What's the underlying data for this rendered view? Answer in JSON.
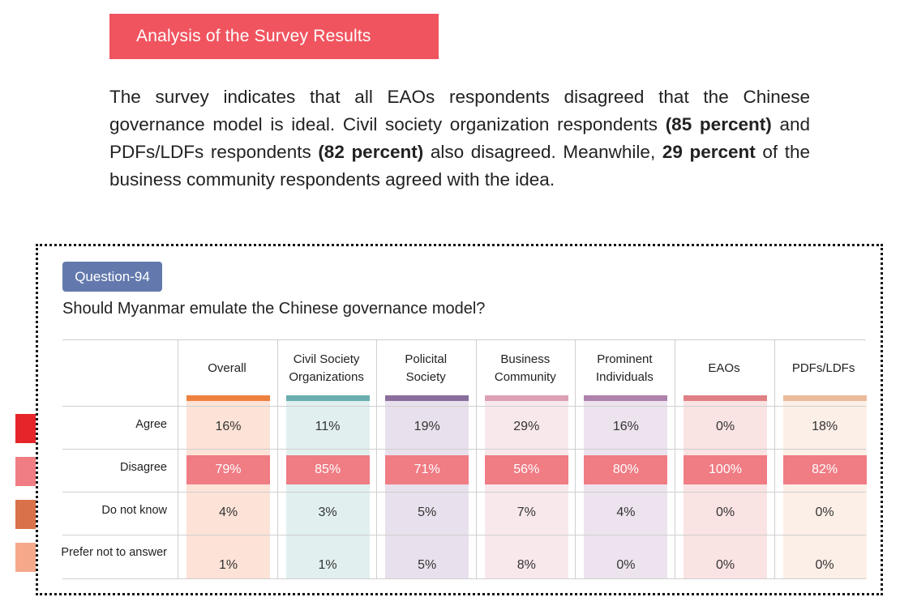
{
  "banner": {
    "title": "Analysis of the Survey Results"
  },
  "paragraph": {
    "part1": "The survey indicates that all EAOs respondents disagreed that the Chinese governance model is ideal. Civil society organization respondents ",
    "bold1": "(85 percent)",
    "part2": " and PDFs/LDFs respondents ",
    "bold2": "(82 percent)",
    "part3": " also disagreed. Meanwhile, ",
    "bold3": "29 percent",
    "part4": " of the business community respondents agreed with the idea."
  },
  "question": {
    "badge": "Question-94",
    "text": "Should Myanmar emulate the Chinese governance model?"
  },
  "colors": {
    "banner": "#f0545f",
    "badge": "#6379ad",
    "disagree_cell": "#f07c84",
    "legend": [
      "#e5252a",
      "#f07c84",
      "#d9714a",
      "#f5a98a"
    ]
  },
  "chart_data": {
    "type": "table",
    "title": "Should Myanmar emulate the Chinese governance model?",
    "columns": [
      {
        "name": "Overall",
        "accent": "#f08040",
        "tint": "#fde3d7"
      },
      {
        "name": "Civil Society Organizations",
        "accent": "#6aaeb0",
        "tint": "#e1efef"
      },
      {
        "name": "Policital Society",
        "accent": "#8a6d9c",
        "tint": "#e8e0ec"
      },
      {
        "name": "Business Community",
        "accent": "#dba0b3",
        "tint": "#f8e8ec"
      },
      {
        "name": "Prominent Individuals",
        "accent": "#ad82ad",
        "tint": "#ece3ee"
      },
      {
        "name": "EAOs",
        "accent": "#e08084",
        "tint": "#fae3e3"
      },
      {
        "name": "PDFs/LDFs",
        "accent": "#eabb9a",
        "tint": "#fcefe7"
      }
    ],
    "rows": [
      "Agree",
      "Disagree",
      "Do not know",
      "Prefer not to answer"
    ],
    "values": [
      [
        "16%",
        "11%",
        "19%",
        "29%",
        "16%",
        "0%",
        "18%"
      ],
      [
        "79%",
        "85%",
        "71%",
        "56%",
        "80%",
        "100%",
        "82%"
      ],
      [
        "4%",
        "3%",
        "5%",
        "7%",
        "4%",
        "0%",
        "0%"
      ],
      [
        "1%",
        "1%",
        "5%",
        "8%",
        "0%",
        "0%",
        "0%"
      ]
    ],
    "highlight_row": "Disagree"
  }
}
